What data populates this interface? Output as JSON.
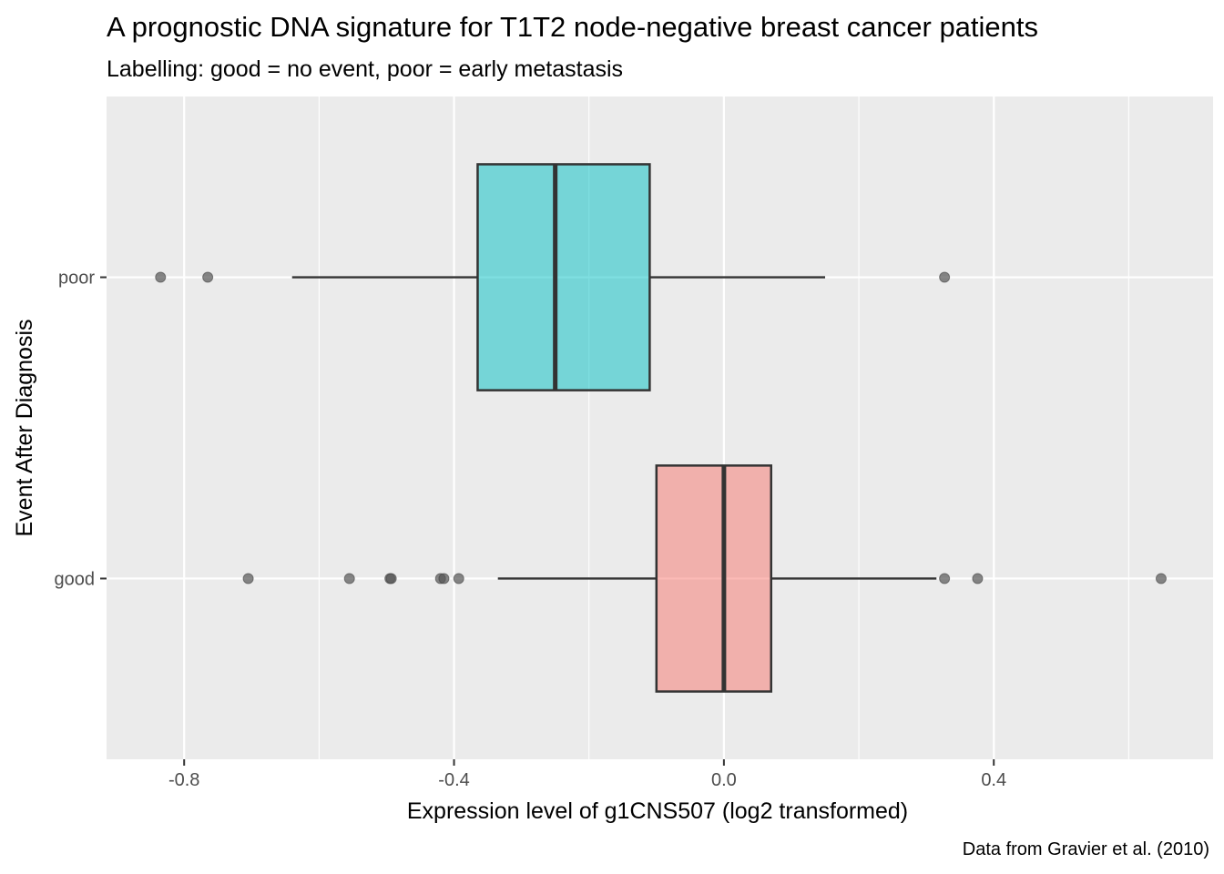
{
  "chart_data": {
    "type": "boxplot",
    "orientation": "horizontal",
    "title": "A prognostic DNA signature for T1T2 node-negative breast cancer patients",
    "subtitle": "Labelling: good = no event, poor = early metastasis",
    "xlabel": "Expression level of g1CNS507 (log2 transformed)",
    "ylabel": "Event After Diagnosis",
    "caption": "Data from Gravier et al. (2010)",
    "xlim": [
      -0.915,
      0.725
    ],
    "x_ticks": [
      -0.8,
      -0.4,
      0.0,
      0.4
    ],
    "x_tick_labels": [
      "-0.8",
      "-0.4",
      "0.0",
      "0.4"
    ],
    "categories": [
      "poor",
      "good"
    ],
    "grid": true,
    "legend": "none",
    "colors": {
      "panel_background": "#ebebeb",
      "grid": "#ffffff",
      "box_outline": "#333333",
      "outlier": "#555555",
      "good": "#F8766D",
      "poor": "#00BFC4"
    },
    "boxes": [
      {
        "category": "poor",
        "whisker_low": -0.64,
        "q1": -0.365,
        "median": -0.25,
        "q3": -0.11,
        "whisker_high": 0.15,
        "outliers": [
          -0.835,
          -0.765,
          0.327
        ]
      },
      {
        "category": "good",
        "whisker_low": -0.335,
        "q1": -0.1,
        "median": 0.0,
        "q3": 0.07,
        "whisker_high": 0.315,
        "outliers": [
          -0.705,
          -0.555,
          -0.495,
          -0.493,
          -0.42,
          -0.415,
          -0.393,
          0.327,
          0.376,
          0.648
        ]
      }
    ]
  }
}
